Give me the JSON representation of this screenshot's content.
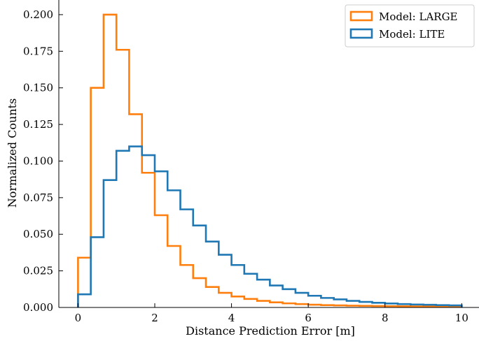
{
  "chart_data": {
    "type": "histogram",
    "xlabel": "Distance Prediction Error [m]",
    "ylabel": "Normalized Counts",
    "xlim": [
      -0.5,
      10.45
    ],
    "ylim": [
      0,
      0.21
    ],
    "xticks": [
      0,
      2,
      4,
      6,
      8,
      10
    ],
    "xtick_labels": [
      "0",
      "2",
      "4",
      "6",
      "8",
      "10"
    ],
    "yticks": [
      0,
      0.025,
      0.05,
      0.075,
      0.1,
      0.125,
      0.15,
      0.175,
      0.2
    ],
    "ytick_labels": [
      "0.000",
      "0.025",
      "0.050",
      "0.075",
      "0.100",
      "0.125",
      "0.150",
      "0.175",
      "0.200"
    ],
    "grid": false,
    "legend_position": "top-right",
    "bin_edges": [
      0,
      0.333,
      0.667,
      1.0,
      1.333,
      1.667,
      2.0,
      2.333,
      2.667,
      3.0,
      3.333,
      3.667,
      4.0,
      4.333,
      4.667,
      5.0,
      5.333,
      5.667,
      6.0,
      6.333,
      6.667,
      7.0,
      7.333,
      7.667,
      8.0,
      8.333,
      8.667,
      9.0,
      9.333,
      9.667,
      10.0
    ],
    "series": [
      {
        "name": "Model: LARGE",
        "color": "#ff7f0e",
        "values": [
          0.034,
          0.15,
          0.2,
          0.176,
          0.132,
          0.092,
          0.063,
          0.042,
          0.029,
          0.02,
          0.014,
          0.01,
          0.0075,
          0.0058,
          0.0045,
          0.0035,
          0.0028,
          0.0023,
          0.0019,
          0.0016,
          0.0014,
          0.0012,
          0.0011,
          0.001,
          0.0009,
          0.0008,
          0.0007,
          0.0007,
          0.0006,
          0.0006
        ]
      },
      {
        "name": "Model: LITE",
        "color": "#1f77b4",
        "values": [
          0.009,
          0.048,
          0.087,
          0.107,
          0.11,
          0.104,
          0.093,
          0.08,
          0.067,
          0.056,
          0.045,
          0.036,
          0.029,
          0.023,
          0.019,
          0.015,
          0.0125,
          0.01,
          0.008,
          0.0065,
          0.0055,
          0.0045,
          0.0038,
          0.0032,
          0.0027,
          0.0023,
          0.002,
          0.0018,
          0.0016,
          0.0014
        ]
      }
    ]
  }
}
